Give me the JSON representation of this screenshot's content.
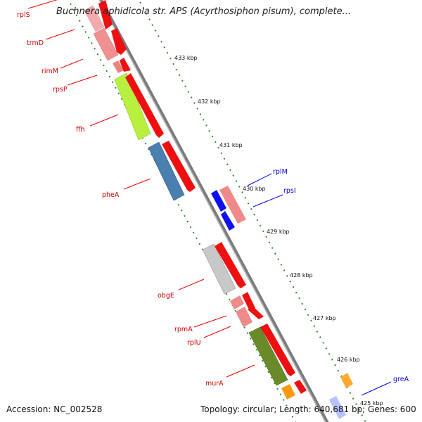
{
  "title": "Buchnera aphidicola str. APS (Acyrthosiphon pisum), complete...",
  "accession": "Accession: NC_002528",
  "topology": "Topology: circular; Length: 640,681 bp; Genes: 600",
  "colors": {
    "backbone": "#888888",
    "forward_arrow": "#ff0000",
    "reverse_red_label": "#cc0000",
    "blue_label": "#0000cc",
    "tick_dot": "#3a8a3a"
  },
  "tick_labels": [
    "433 kbp",
    "432 kbp",
    "431 kbp",
    "430 kbp",
    "429 kbp",
    "428 kbp",
    "427 kbp",
    "426 kbp",
    "425 kbp"
  ],
  "genes": [
    {
      "name": "rplS",
      "color": "#ee2222",
      "strand": "red-label"
    },
    {
      "name": "trmD",
      "color": "#ee2222",
      "strand": "red-label"
    },
    {
      "name": "rimM",
      "color": "#ee2222",
      "strand": "red-label"
    },
    {
      "name": "rpsP",
      "color": "#ee2222",
      "strand": "red-label"
    },
    {
      "name": "ffh",
      "color": "#ee2222",
      "strand": "red-label"
    },
    {
      "name": "pheA",
      "color": "#ee2222",
      "strand": "red-label"
    },
    {
      "name": "rplM",
      "color": "#0000cc",
      "strand": "blue-label"
    },
    {
      "name": "rpsI",
      "color": "#0000cc",
      "strand": "blue-label"
    },
    {
      "name": "obgE",
      "color": "#ee2222",
      "strand": "red-label"
    },
    {
      "name": "rpmA",
      "color": "#ee2222",
      "strand": "red-label"
    },
    {
      "name": "rplU",
      "color": "#ee2222",
      "strand": "red-label"
    },
    {
      "name": "murA",
      "color": "#ee2222",
      "strand": "red-label"
    },
    {
      "name": "greA",
      "color": "#0000cc",
      "strand": "blue-label"
    }
  ]
}
